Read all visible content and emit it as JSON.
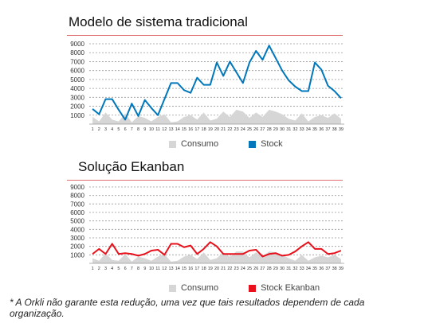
{
  "footnote": "* A Orkli não garante esta redução, uma vez que tais resultados dependem de cada organização.",
  "colors": {
    "consumo": "#d6d6d6",
    "stock": "#0077bb",
    "ekanban": "#e8101a",
    "grid": "#999999",
    "rule": "#e07070"
  },
  "chart_data": [
    {
      "type": "line",
      "title": "Modelo de sistema tradicional",
      "ylim": [
        0,
        9000
      ],
      "yticks": [
        1000,
        2000,
        3000,
        4000,
        5000,
        6000,
        7000,
        8000,
        9000
      ],
      "grid": true,
      "legend_position": "bottom",
      "categories": [
        "1",
        "2",
        "3",
        "4",
        "5",
        "6",
        "7",
        "8",
        "9",
        "10",
        "11",
        "12",
        "13",
        "14",
        "15",
        "16",
        "17",
        "18",
        "19",
        "20",
        "21",
        "22",
        "23",
        "24",
        "25",
        "26",
        "27",
        "28",
        "29",
        "30",
        "31",
        "32",
        "33",
        "34",
        "35",
        "36",
        "37",
        "38",
        "39"
      ],
      "series": [
        {
          "name": "Consumo",
          "style": "area",
          "values": [
            800,
            300,
            1300,
            500,
            300,
            1200,
            200,
            900,
            700,
            300,
            800,
            1100,
            200,
            300,
            800,
            1000,
            500,
            1300,
            400,
            600,
            1400,
            800,
            1600,
            1400,
            700,
            1300,
            800,
            1600,
            1400,
            1100,
            600,
            400,
            1200,
            300,
            800,
            1000,
            700,
            1200,
            600
          ]
        },
        {
          "name": "Stock",
          "style": "line",
          "values": [
            1700,
            1100,
            2800,
            2800,
            1600,
            500,
            2300,
            900,
            2700,
            1800,
            1000,
            2800,
            4600,
            4600,
            3800,
            3500,
            5200,
            4400,
            4400,
            6900,
            5400,
            7000,
            5800,
            4600,
            6900,
            8200,
            7200,
            8800,
            7400,
            6000,
            4900,
            4200,
            3700,
            3700,
            6900,
            6100,
            4300,
            3700,
            2900
          ]
        }
      ]
    },
    {
      "type": "line",
      "title": "Solução Ekanban",
      "ylim": [
        0,
        9000
      ],
      "yticks": [
        1000,
        2000,
        3000,
        4000,
        5000,
        6000,
        7000,
        8000,
        9000
      ],
      "grid": true,
      "legend_position": "bottom",
      "categories": [
        "1",
        "2",
        "3",
        "4",
        "5",
        "6",
        "7",
        "8",
        "9",
        "10",
        "11",
        "12",
        "13",
        "14",
        "15",
        "16",
        "17",
        "18",
        "19",
        "20",
        "21",
        "22",
        "23",
        "24",
        "25",
        "26",
        "27",
        "28",
        "29",
        "30",
        "31",
        "32",
        "33",
        "34",
        "35",
        "36",
        "37",
        "38",
        "39"
      ],
      "series": [
        {
          "name": "Consumo",
          "style": "area",
          "values": [
            600,
            300,
            1200,
            400,
            300,
            1100,
            200,
            800,
            600,
            300,
            800,
            1100,
            200,
            300,
            800,
            1000,
            500,
            1300,
            400,
            600,
            1300,
            800,
            1400,
            1400,
            700,
            1300,
            800,
            1400,
            1300,
            1000,
            600,
            300,
            1000,
            300,
            700,
            900,
            700,
            1000,
            500
          ]
        },
        {
          "name": "Stock Ekanban",
          "style": "line",
          "values": [
            1100,
            1700,
            1100,
            2300,
            1100,
            1200,
            1100,
            900,
            1100,
            1500,
            1600,
            1000,
            2300,
            2300,
            1900,
            2100,
            1100,
            1700,
            2500,
            2000,
            1100,
            1100,
            1100,
            1100,
            1500,
            1600,
            800,
            1100,
            1200,
            900,
            1000,
            1400,
            2000,
            2500,
            1700,
            1700,
            1100,
            1200,
            1500
          ]
        }
      ]
    }
  ]
}
